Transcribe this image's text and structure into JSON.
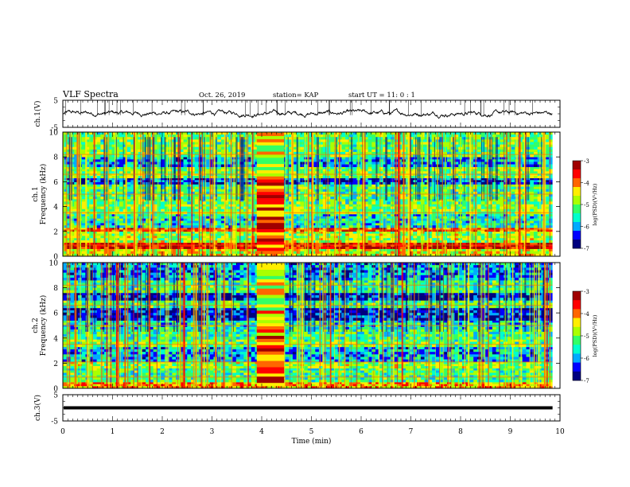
{
  "header": {
    "title": "VLF Spectra",
    "date": "Oct. 26, 2019",
    "station": "station= KAP",
    "start": "start  UT  =   11: 0  : 1"
  },
  "colors": {
    "spectrogram_colormap": [
      "#00007f",
      "#0000ff",
      "#00aaff",
      "#00ffcc",
      "#33ff66",
      "#aaff00",
      "#ffee00",
      "#ff6600",
      "#ff0000",
      "#a00000"
    ],
    "trace": "#000000"
  },
  "chart_data": [
    {
      "type": "line",
      "name": "ch1-waveform",
      "ylabel": "ch.1(V)",
      "ylim": [
        -5,
        5
      ],
      "yticks": [
        "5",
        "-5"
      ],
      "xlim": [
        0,
        10
      ],
      "x_end": 9.85,
      "baseline": 0.2,
      "envelope": 1.3
    },
    {
      "type": "heatmap",
      "name": "ch1-spectrogram",
      "ylabel": "ch.1",
      "ylabel2": "Frequency  (kHz)",
      "ylim": [
        0,
        10
      ],
      "yticks": [
        "0",
        "2",
        "4",
        "6",
        "8",
        "10"
      ],
      "xlim": [
        0,
        10
      ],
      "x_end": 9.85,
      "colorbar": {
        "label": "log(PSD)(V²/Hz)",
        "range": [
          -7,
          -3
        ],
        "ticks": [
          "-3",
          "-4",
          "-5",
          "-6",
          "-7"
        ]
      },
      "freq_bands_khz": [
        {
          "f0": 0.0,
          "f1": 0.6,
          "level": -4.6
        },
        {
          "f0": 0.6,
          "f1": 1.1,
          "level": -3.4
        },
        {
          "f0": 1.1,
          "f1": 2.0,
          "level": -4.9
        },
        {
          "f0": 2.0,
          "f1": 2.3,
          "level": -3.9
        },
        {
          "f0": 2.3,
          "f1": 3.4,
          "level": -5.6
        },
        {
          "f0": 3.4,
          "f1": 4.2,
          "level": -5.0
        },
        {
          "f0": 4.2,
          "f1": 5.8,
          "level": -5.2
        },
        {
          "f0": 5.8,
          "f1": 6.3,
          "level": -6.3
        },
        {
          "f0": 6.3,
          "f1": 7.2,
          "level": -5.0
        },
        {
          "f0": 7.2,
          "f1": 8.0,
          "level": -5.9
        },
        {
          "f0": 8.0,
          "f1": 10.0,
          "level": -5.1
        }
      ],
      "event": {
        "t0": 3.9,
        "t1": 4.45,
        "level": -3.8
      }
    },
    {
      "type": "heatmap",
      "name": "ch2-spectrogram",
      "ylabel": "ch.2",
      "ylabel2": "Frequency  (kHz)",
      "ylim": [
        0,
        10
      ],
      "yticks": [
        "0",
        "2",
        "4",
        "6",
        "8",
        "10"
      ],
      "xlim": [
        0,
        10
      ],
      "x_end": 9.85,
      "colorbar": {
        "label": "log(PSD)(V²/Hz)",
        "range": [
          -7,
          -3
        ],
        "ticks": [
          "-3",
          "-4",
          "-5",
          "-6",
          "-7"
        ]
      },
      "freq_bands_khz": [
        {
          "f0": 0.0,
          "f1": 0.5,
          "level": -4.2
        },
        {
          "f0": 0.5,
          "f1": 1.6,
          "level": -5.3
        },
        {
          "f0": 1.6,
          "f1": 2.1,
          "level": -4.9
        },
        {
          "f0": 2.1,
          "f1": 3.3,
          "level": -5.9
        },
        {
          "f0": 3.3,
          "f1": 3.9,
          "level": -5.1
        },
        {
          "f0": 3.9,
          "f1": 4.7,
          "level": -5.4
        },
        {
          "f0": 4.7,
          "f1": 5.4,
          "level": -5.6
        },
        {
          "f0": 5.4,
          "f1": 6.4,
          "level": -6.5
        },
        {
          "f0": 6.4,
          "f1": 7.0,
          "level": -5.3
        },
        {
          "f0": 7.0,
          "f1": 7.6,
          "level": -6.5
        },
        {
          "f0": 7.6,
          "f1": 8.6,
          "level": -5.3
        },
        {
          "f0": 8.6,
          "f1": 10.0,
          "level": -6.0
        }
      ],
      "event": {
        "t0": 3.9,
        "t1": 4.45,
        "level": -3.9
      }
    },
    {
      "type": "line",
      "name": "ch3-level",
      "ylabel": "ch.3(V)",
      "xlabel": "Time  (min)",
      "ylim": [
        -5,
        5
      ],
      "yticks": [
        "5",
        "-5"
      ],
      "xlim": [
        0,
        10
      ],
      "x_end": 9.85,
      "value": 0.0,
      "xticks": [
        "0",
        "1",
        "2",
        "3",
        "4",
        "5",
        "6",
        "7",
        "8",
        "9",
        "10"
      ]
    }
  ]
}
